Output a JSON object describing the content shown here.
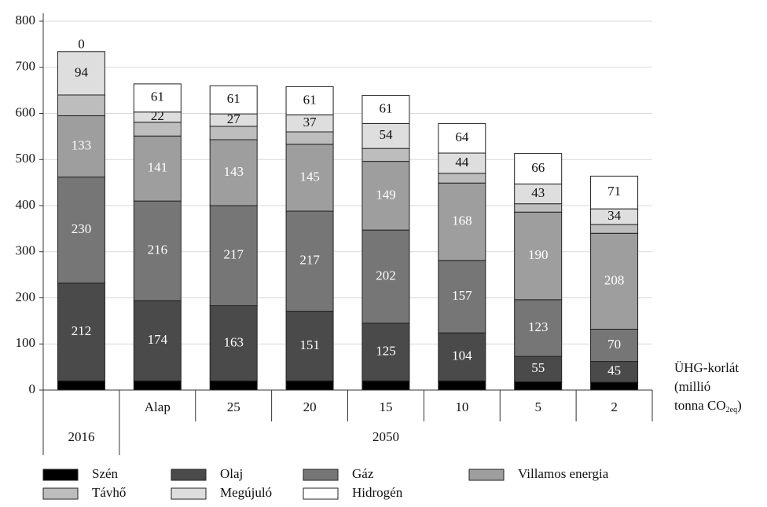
{
  "chart_data": {
    "type": "stacked_bar",
    "categories": [
      null,
      "Alap",
      "25",
      "20",
      "15",
      "10",
      "5",
      "2"
    ],
    "groups": [
      "2016",
      "2050"
    ],
    "x_label": {
      "lines": [
        "ÜHG-korlát",
        "(millió"
      ],
      "last": "tonna CO",
      "sub": "2eq",
      "end": ")"
    },
    "ylim": [
      0,
      800
    ],
    "yticks": [
      0,
      100,
      200,
      300,
      400,
      500,
      600,
      700,
      800
    ],
    "grid": true,
    "series": [
      {
        "name": "Szén",
        "color": "#000000",
        "labeled": false,
        "values": [
          20,
          20,
          20,
          20,
          20,
          20,
          18,
          17
        ]
      },
      {
        "name": "Olaj",
        "color": "#4a4a4a",
        "labeled": true,
        "values": [
          212,
          174,
          163,
          151,
          125,
          104,
          55,
          45
        ]
      },
      {
        "name": "Gáz",
        "color": "#767676",
        "labeled": true,
        "values": [
          230,
          216,
          217,
          217,
          202,
          157,
          123,
          70
        ]
      },
      {
        "name": "Villamos energia",
        "color": "#9e9e9e",
        "labeled": true,
        "values": [
          133,
          141,
          143,
          145,
          149,
          168,
          190,
          208
        ]
      },
      {
        "name": "Távhő",
        "color": "#bdbdbd",
        "labeled": false,
        "values": [
          45,
          30,
          29,
          27,
          28,
          21,
          18,
          19
        ]
      },
      {
        "name": "Megújuló",
        "color": "#dedede",
        "labeled": true,
        "values": [
          94,
          22,
          27,
          37,
          54,
          44,
          43,
          34
        ]
      },
      {
        "name": "Hidrogén",
        "color": "#ffffff",
        "labeled": true,
        "values": [
          0,
          61,
          61,
          61,
          61,
          64,
          66,
          71
        ]
      }
    ]
  }
}
